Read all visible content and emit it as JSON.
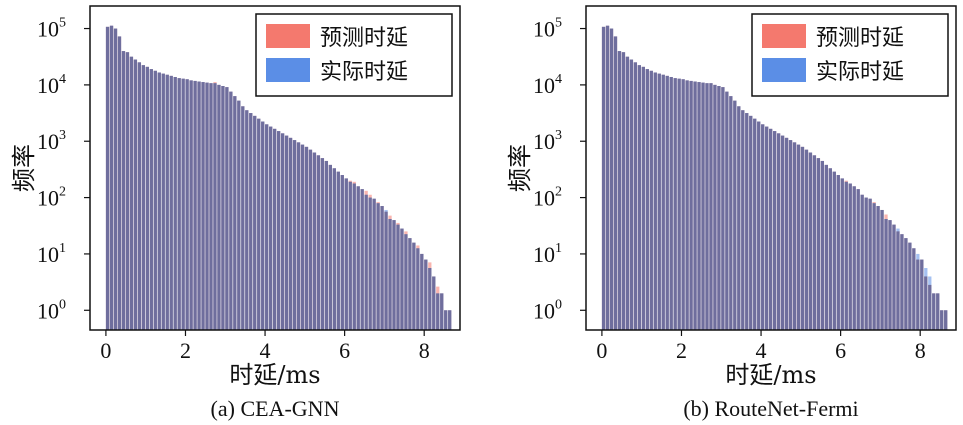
{
  "chart_data": [
    {
      "type": "bar",
      "caption": "(a) CEA-GNN",
      "xlabel": "时延/ms",
      "ylabel": "频率",
      "yscale": "log",
      "xlim": [
        -0.4,
        8.9
      ],
      "ylim_log10": [
        -0.35,
        5.4
      ],
      "xticks": [
        "0",
        "2",
        "4",
        "6",
        "8"
      ],
      "yticks": [
        {
          "base": "10",
          "exp": "0"
        },
        {
          "base": "10",
          "exp": "1"
        },
        {
          "base": "10",
          "exp": "2"
        },
        {
          "base": "10",
          "exp": "3"
        },
        {
          "base": "10",
          "exp": "4"
        },
        {
          "base": "10",
          "exp": "5"
        }
      ],
      "legend_position": "top-right",
      "colors": {
        "predicted": "#f4796e",
        "actual": "#5b8ee6",
        "overlap": "#5d5d8c"
      },
      "bin_width": 0.1,
      "x_start": 0.0,
      "series": [
        {
          "name": "预测时延",
          "log10_values": [
            5.03,
            5.05,
            5.0,
            4.86,
            4.6,
            4.58,
            4.5,
            4.45,
            4.4,
            4.35,
            4.32,
            4.28,
            4.25,
            4.22,
            4.2,
            4.18,
            4.16,
            4.14,
            4.12,
            4.11,
            4.1,
            4.08,
            4.07,
            4.06,
            4.05,
            4.04,
            4.03,
            4.05,
            4.0,
            3.98,
            3.96,
            3.88,
            3.8,
            3.72,
            3.62,
            3.55,
            3.5,
            3.45,
            3.4,
            3.35,
            3.3,
            3.26,
            3.22,
            3.18,
            3.14,
            3.1,
            3.06,
            3.02,
            2.98,
            2.94,
            2.9,
            2.85,
            2.8,
            2.75,
            2.7,
            2.65,
            2.58,
            2.52,
            2.46,
            2.4,
            2.34,
            2.3,
            2.28,
            2.2,
            2.15,
            2.12,
            2.05,
            1.98,
            1.92,
            1.85,
            1.75,
            1.68,
            1.6,
            1.55,
            1.45,
            1.4,
            1.28,
            1.2,
            1.15,
            1.0,
            0.9,
            0.85,
            0.6,
            0.42,
            0.3,
            0.0,
            0.0
          ]
        },
        {
          "name": "实际时延",
          "log10_values": [
            5.03,
            5.05,
            5.0,
            4.86,
            4.6,
            4.58,
            4.5,
            4.45,
            4.4,
            4.35,
            4.32,
            4.28,
            4.25,
            4.22,
            4.2,
            4.18,
            4.16,
            4.14,
            4.12,
            4.11,
            4.1,
            4.08,
            4.07,
            4.06,
            4.05,
            4.04,
            4.03,
            4.03,
            4.0,
            3.98,
            3.96,
            3.88,
            3.8,
            3.72,
            3.62,
            3.55,
            3.5,
            3.45,
            3.4,
            3.35,
            3.3,
            3.26,
            3.22,
            3.18,
            3.14,
            3.1,
            3.06,
            3.02,
            2.98,
            2.94,
            2.9,
            2.85,
            2.8,
            2.75,
            2.7,
            2.65,
            2.58,
            2.52,
            2.46,
            2.4,
            2.34,
            2.28,
            2.25,
            2.2,
            2.15,
            2.05,
            2.0,
            1.98,
            1.9,
            1.85,
            1.78,
            1.62,
            1.6,
            1.52,
            1.45,
            1.35,
            1.28,
            1.2,
            1.1,
            1.0,
            0.9,
            0.75,
            0.6,
            0.3,
            0.3,
            0.0,
            0.0
          ]
        }
      ]
    },
    {
      "type": "bar",
      "caption": "(b) RouteNet-Fermi",
      "xlabel": "时延/ms",
      "ylabel": "频率",
      "yscale": "log",
      "xlim": [
        -0.4,
        8.9
      ],
      "ylim_log10": [
        -0.35,
        5.4
      ],
      "xticks": [
        "0",
        "2",
        "4",
        "6",
        "8"
      ],
      "yticks": [
        {
          "base": "10",
          "exp": "0"
        },
        {
          "base": "10",
          "exp": "1"
        },
        {
          "base": "10",
          "exp": "2"
        },
        {
          "base": "10",
          "exp": "3"
        },
        {
          "base": "10",
          "exp": "4"
        },
        {
          "base": "10",
          "exp": "5"
        }
      ],
      "legend_position": "top-right",
      "colors": {
        "predicted": "#f4796e",
        "actual": "#5b8ee6",
        "overlap": "#5d5d8c"
      },
      "bin_width": 0.1,
      "x_start": 0.0,
      "series": [
        {
          "name": "预测时延",
          "log10_values": [
            5.03,
            5.05,
            5.0,
            4.86,
            4.6,
            4.58,
            4.5,
            4.45,
            4.4,
            4.35,
            4.32,
            4.28,
            4.25,
            4.22,
            4.2,
            4.18,
            4.16,
            4.14,
            4.12,
            4.11,
            4.1,
            4.08,
            4.07,
            4.06,
            4.05,
            4.04,
            4.03,
            4.03,
            4.0,
            3.98,
            3.96,
            3.88,
            3.8,
            3.72,
            3.62,
            3.55,
            3.5,
            3.45,
            3.4,
            3.35,
            3.3,
            3.26,
            3.22,
            3.18,
            3.14,
            3.1,
            3.06,
            3.02,
            2.98,
            2.94,
            2.9,
            2.85,
            2.8,
            2.75,
            2.7,
            2.65,
            2.58,
            2.52,
            2.46,
            2.4,
            2.34,
            2.3,
            2.25,
            2.2,
            2.15,
            2.05,
            2.0,
            1.98,
            1.92,
            1.85,
            1.78,
            1.7,
            1.6,
            1.52,
            1.4,
            1.35,
            1.28,
            1.2,
            1.1,
            0.9,
            0.9,
            0.6,
            0.45,
            0.3,
            0.3,
            0.0,
            0.0
          ]
        },
        {
          "name": "实际时延",
          "log10_values": [
            5.03,
            5.05,
            5.0,
            4.86,
            4.6,
            4.58,
            4.5,
            4.45,
            4.4,
            4.35,
            4.32,
            4.28,
            4.25,
            4.22,
            4.2,
            4.18,
            4.16,
            4.14,
            4.12,
            4.11,
            4.1,
            4.08,
            4.07,
            4.06,
            4.05,
            4.04,
            4.03,
            4.03,
            4.0,
            3.98,
            3.96,
            3.88,
            3.8,
            3.72,
            3.62,
            3.55,
            3.5,
            3.45,
            3.4,
            3.35,
            3.3,
            3.26,
            3.22,
            3.18,
            3.14,
            3.1,
            3.06,
            3.02,
            2.98,
            2.94,
            2.9,
            2.85,
            2.8,
            2.75,
            2.7,
            2.65,
            2.58,
            2.52,
            2.46,
            2.4,
            2.34,
            2.28,
            2.25,
            2.2,
            2.15,
            2.05,
            2.0,
            1.98,
            1.9,
            1.85,
            1.78,
            1.62,
            1.6,
            1.52,
            1.45,
            1.35,
            1.28,
            1.2,
            1.1,
            1.0,
            0.9,
            0.75,
            0.6,
            0.3,
            0.3,
            0.0,
            0.0
          ]
        }
      ]
    }
  ]
}
